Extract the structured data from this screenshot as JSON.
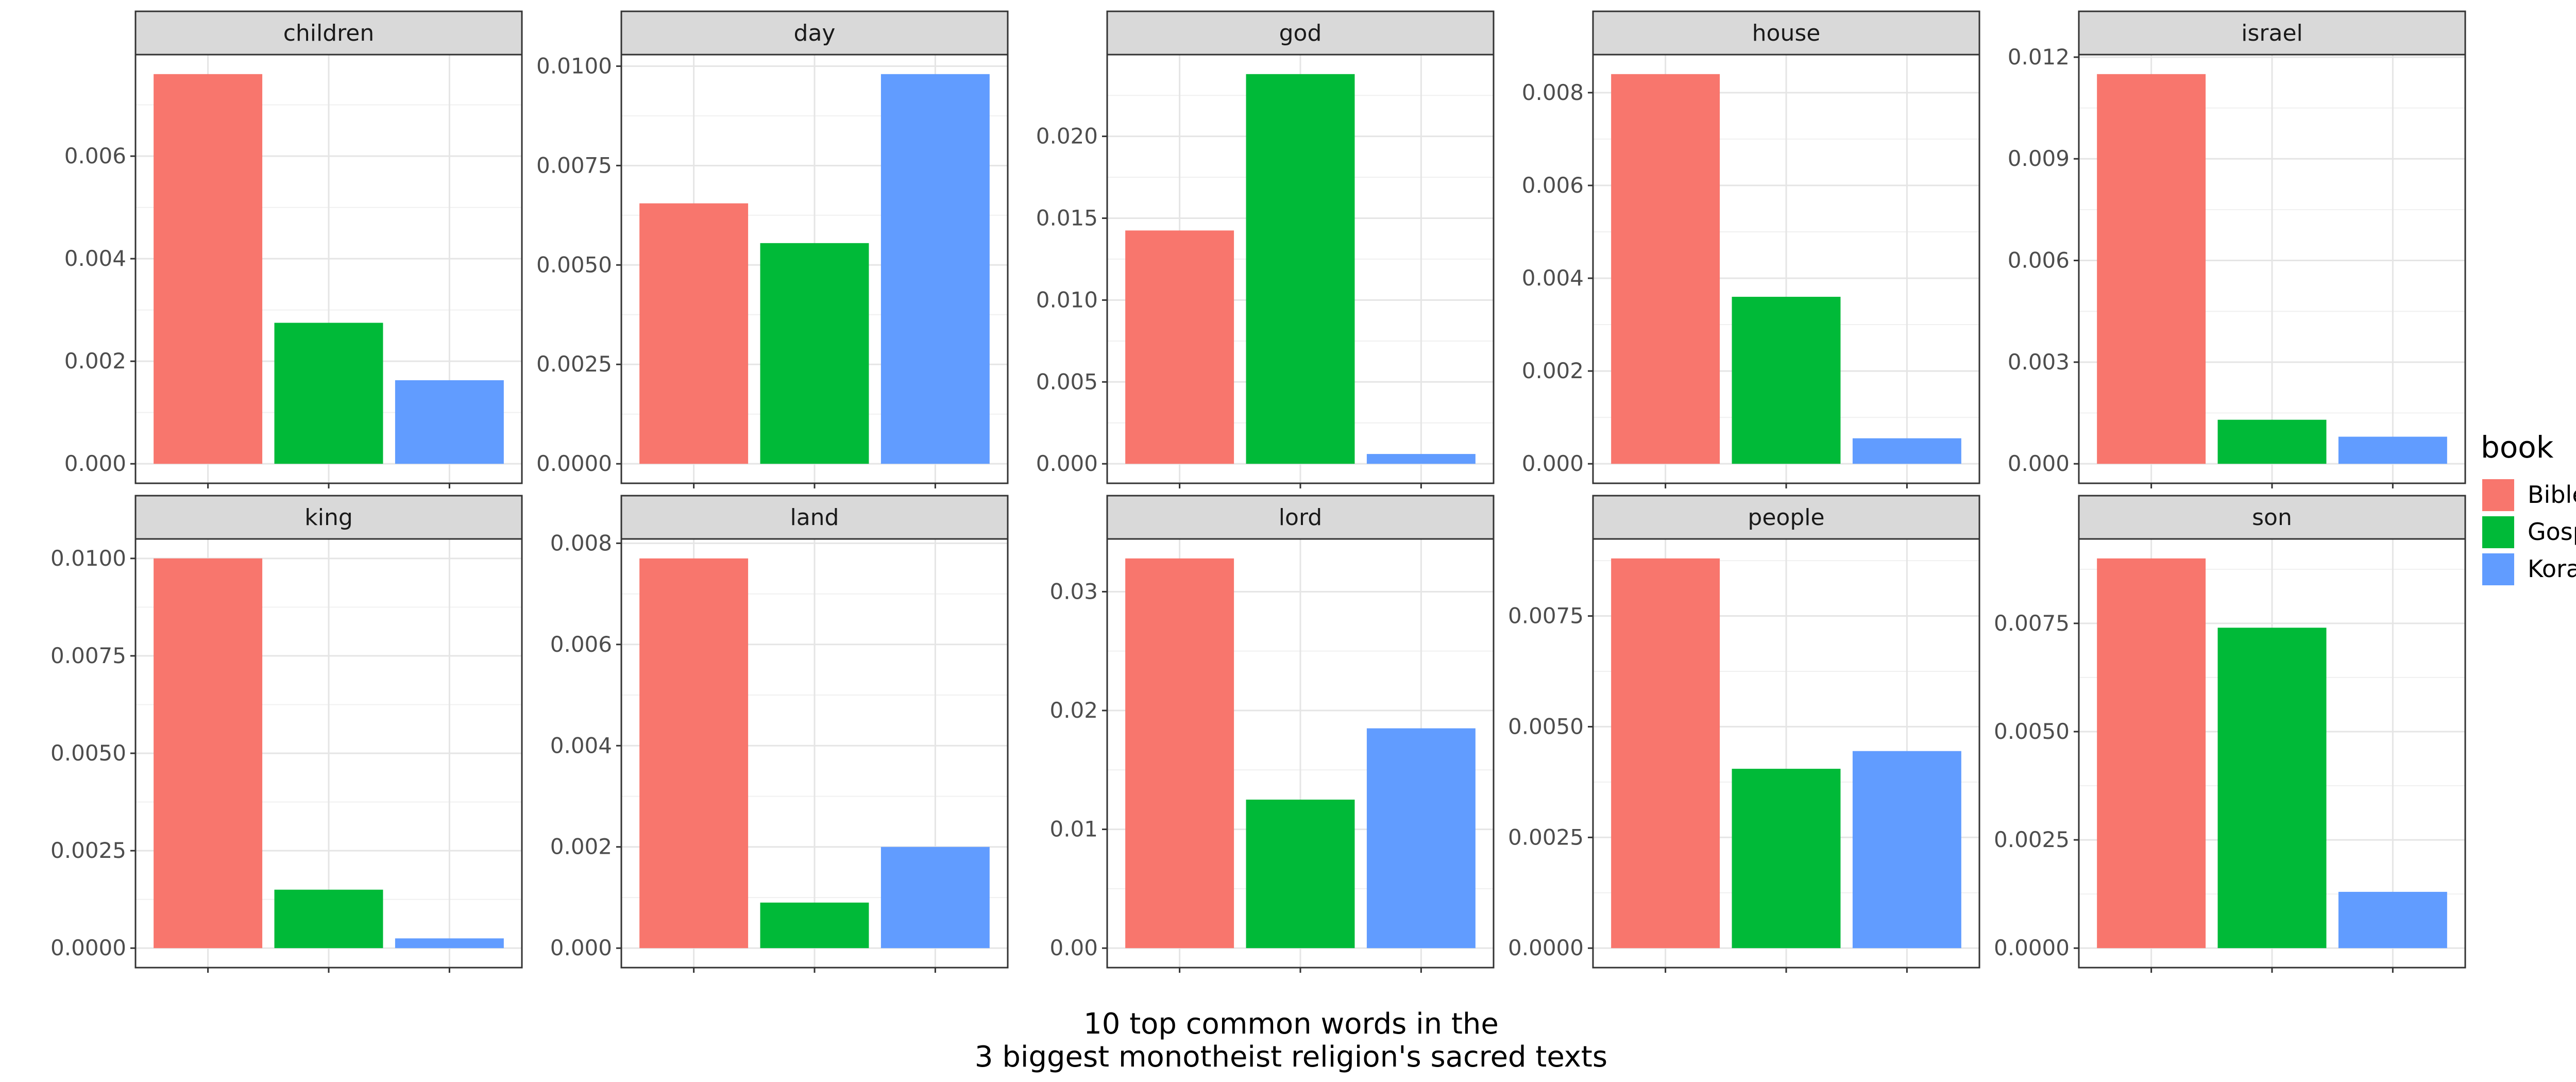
{
  "chart_data": {
    "type": "bar",
    "layout": "facet_wrap",
    "facet_columns": 5,
    "categories": [
      "Bible",
      "Gospel",
      "Koran"
    ],
    "caption_lines": [
      "10 top common words in the",
      "3 biggest monotheist religion's sacred texts"
    ],
    "legend": {
      "title": "book",
      "placement": "right",
      "entries": [
        {
          "label": "Bible",
          "color": "#F8766D"
        },
        {
          "label": "Gospel",
          "color": "#00BA38"
        },
        {
          "label": "Koran",
          "color": "#619CFF"
        }
      ]
    },
    "grid": true,
    "x_tick_labels_shown": false,
    "facets": [
      {
        "name": "children",
        "values": [
          0.0076,
          0.00275,
          0.00163
        ],
        "ylim": [
          -0.00038,
          0.00798
        ],
        "yticks": [
          "0.000",
          "0.002",
          "0.004",
          "0.006"
        ]
      },
      {
        "name": "day",
        "values": [
          0.00655,
          0.00555,
          0.0098
        ],
        "ylim": [
          -0.00049,
          0.01029
        ],
        "yticks": [
          "0.0000",
          "0.0025",
          "0.0050",
          "0.0075",
          "0.0100"
        ]
      },
      {
        "name": "god",
        "values": [
          0.01425,
          0.0238,
          0.0006
        ],
        "ylim": [
          -0.00119,
          0.02499
        ],
        "yticks": [
          "0.000",
          "0.005",
          "0.010",
          "0.015",
          "0.020"
        ]
      },
      {
        "name": "house",
        "values": [
          0.0084,
          0.0036,
          0.00055
        ],
        "ylim": [
          -0.00042,
          0.00882
        ],
        "yticks": [
          "0.000",
          "0.002",
          "0.004",
          "0.006",
          "0.008"
        ]
      },
      {
        "name": "israel",
        "values": [
          0.0115,
          0.0013,
          0.0008
        ],
        "ylim": [
          -0.000575,
          0.012075
        ],
        "yticks": [
          "0.000",
          "0.003",
          "0.006",
          "0.009",
          "0.012"
        ]
      },
      {
        "name": "king",
        "values": [
          0.01,
          0.0015,
          0.00025
        ],
        "ylim": [
          -0.0005,
          0.0105
        ],
        "yticks": [
          "0.0000",
          "0.0025",
          "0.0050",
          "0.0075",
          "0.0100"
        ]
      },
      {
        "name": "land",
        "values": [
          0.0077,
          0.0009,
          0.002
        ],
        "ylim": [
          -0.000385,
          0.008085
        ],
        "yticks": [
          "0.000",
          "0.002",
          "0.004",
          "0.006",
          "0.008"
        ]
      },
      {
        "name": "lord",
        "values": [
          0.0328,
          0.0125,
          0.0185
        ],
        "ylim": [
          -0.00164,
          0.03444
        ],
        "yticks": [
          "0.00",
          "0.01",
          "0.02",
          "0.03"
        ]
      },
      {
        "name": "people",
        "values": [
          0.0088,
          0.00405,
          0.00445
        ],
        "ylim": [
          -0.00044,
          0.00924
        ],
        "yticks": [
          "0.0000",
          "0.0025",
          "0.0050",
          "0.0075"
        ]
      },
      {
        "name": "son",
        "values": [
          0.009,
          0.0074,
          0.0013
        ],
        "ylim": [
          -0.00045,
          0.00945
        ],
        "yticks": [
          "0.0000",
          "0.0025",
          "0.0050",
          "0.0075"
        ]
      }
    ]
  }
}
